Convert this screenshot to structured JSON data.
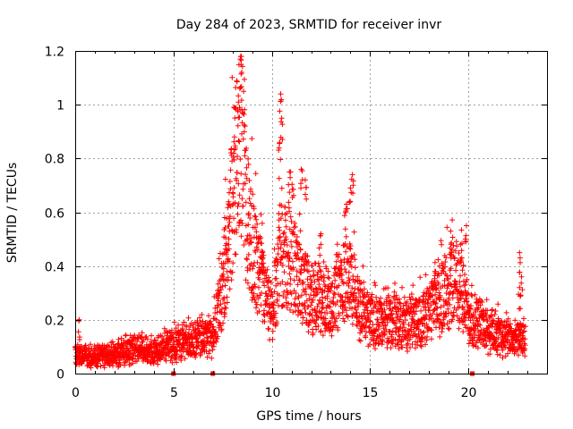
{
  "chart_data": {
    "type": "scatter",
    "title": "Day 284 of 2023, SRMTID for receiver invr",
    "xlabel": "GPS time / hours",
    "ylabel": "SRMTID / TECUs",
    "xlim": [
      0,
      24
    ],
    "ylim": [
      0,
      1.2
    ],
    "x_ticks": [
      0,
      5,
      10,
      15,
      20
    ],
    "x_tick_labels": [
      "0",
      "5",
      "10",
      "15",
      "20"
    ],
    "y_ticks": [
      0,
      0.2,
      0.4,
      0.6,
      0.8,
      1.0,
      1.2
    ],
    "y_tick_labels": [
      "0",
      "0.2",
      "0.4",
      "0.6",
      "0.8",
      "1",
      "1.2"
    ],
    "grid": true,
    "marker": "+",
    "color": "#ff0000",
    "data_end_hour": 22.9,
    "gap_markers_x": [
      5.0,
      7.0,
      20.2
    ],
    "series": [
      {
        "name": "SRMTID",
        "profile": [
          [
            0.0,
            0.07
          ],
          [
            1.0,
            0.06
          ],
          [
            2.0,
            0.07
          ],
          [
            3.0,
            0.09
          ],
          [
            4.0,
            0.08
          ],
          [
            5.0,
            0.11
          ],
          [
            6.0,
            0.12
          ],
          [
            7.0,
            0.14
          ],
          [
            7.5,
            0.3
          ],
          [
            8.0,
            0.65
          ],
          [
            8.4,
            0.9
          ],
          [
            8.8,
            0.55
          ],
          [
            9.3,
            0.38
          ],
          [
            10.0,
            0.2
          ],
          [
            10.4,
            0.45
          ],
          [
            11.0,
            0.42
          ],
          [
            11.5,
            0.32
          ],
          [
            12.0,
            0.28
          ],
          [
            13.0,
            0.25
          ],
          [
            13.8,
            0.38
          ],
          [
            14.5,
            0.24
          ],
          [
            15.0,
            0.2
          ],
          [
            16.0,
            0.19
          ],
          [
            17.0,
            0.18
          ],
          [
            18.0,
            0.22
          ],
          [
            19.0,
            0.32
          ],
          [
            19.5,
            0.34
          ],
          [
            20.0,
            0.22
          ],
          [
            21.0,
            0.16
          ],
          [
            22.0,
            0.13
          ],
          [
            22.9,
            0.12
          ]
        ],
        "peaks": [
          [
            8.45,
            1.18
          ],
          [
            8.3,
            1.01
          ],
          [
            8.1,
            0.88
          ],
          [
            10.45,
            1.04
          ],
          [
            10.5,
            0.95
          ],
          [
            10.4,
            0.86
          ],
          [
            10.9,
            0.75
          ],
          [
            11.5,
            0.76
          ],
          [
            11.7,
            0.72
          ],
          [
            14.1,
            0.74
          ],
          [
            14.0,
            0.69
          ],
          [
            13.8,
            0.63
          ],
          [
            19.1,
            0.53
          ],
          [
            19.9,
            0.55
          ],
          [
            19.6,
            0.48
          ],
          [
            22.6,
            0.45
          ],
          [
            22.7,
            0.36
          ],
          [
            22.6,
            0.32
          ],
          [
            0.2,
            0.2
          ],
          [
            7.6,
            0.58
          ],
          [
            7.8,
            0.48
          ],
          [
            9.5,
            0.45
          ],
          [
            12.5,
            0.52
          ],
          [
            18.3,
            0.38
          ]
        ]
      }
    ]
  }
}
